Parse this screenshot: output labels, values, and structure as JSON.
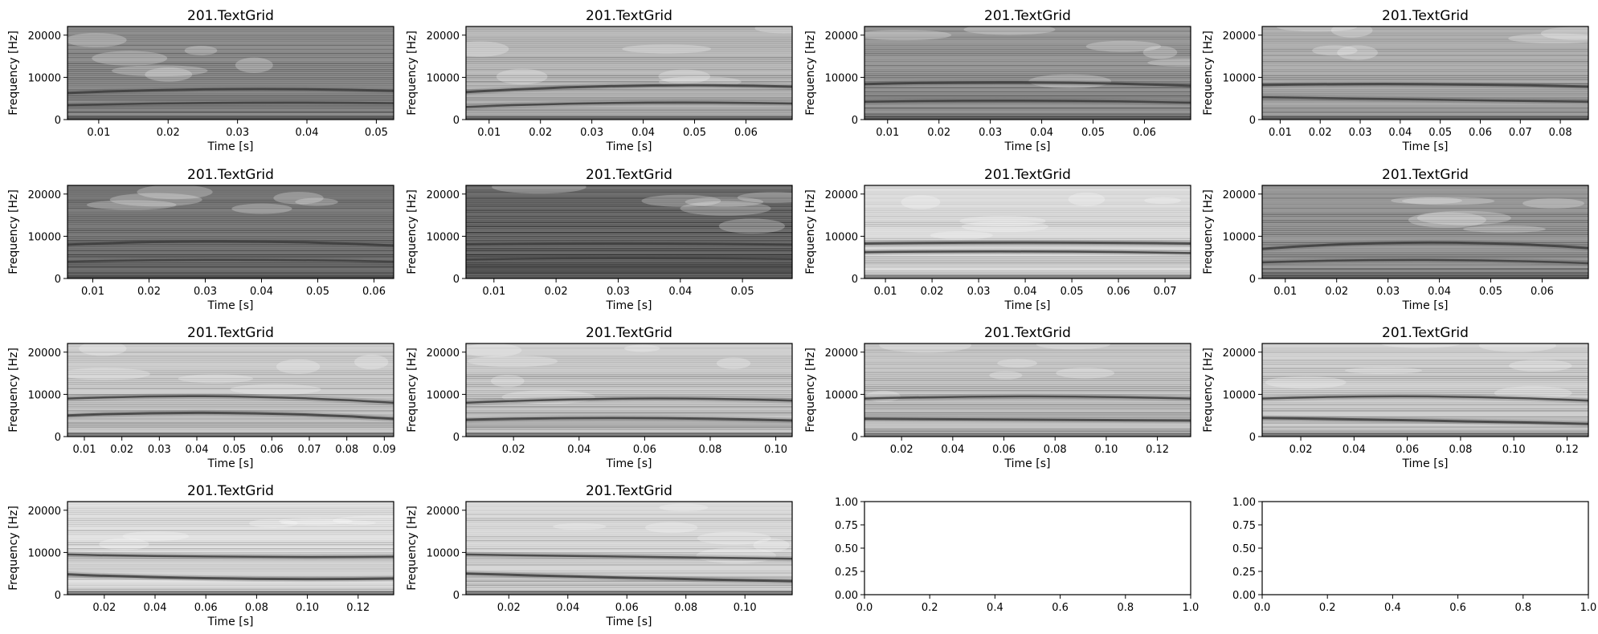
{
  "figure": {
    "grid": {
      "rows": 4,
      "cols": 4
    }
  },
  "chart_data": [
    {
      "type": "heatmap",
      "title": "201.TextGrid",
      "xlabel": "Time [s]",
      "ylabel": "Frequency [Hz]",
      "xlim": [
        0.0055,
        0.0525
      ],
      "ylim": [
        0,
        22050
      ],
      "xticks": [
        "0.01",
        "0.02",
        "0.03",
        "0.04",
        "0.05"
      ],
      "yticks": [
        "0",
        "10000",
        "20000"
      ],
      "formants": [
        [
          6300,
          7200,
          6800
        ],
        [
          3400,
          4000,
          3900
        ]
      ],
      "tone": 0.58
    },
    {
      "type": "heatmap",
      "title": "201.TextGrid",
      "xlabel": "Time [s]",
      "ylabel": "Frequency [Hz]",
      "xlim": [
        0.0055,
        0.069
      ],
      "ylim": [
        0,
        22050
      ],
      "xticks": [
        "0.01",
        "0.02",
        "0.03",
        "0.04",
        "0.05",
        "0.06"
      ],
      "yticks": [
        "0",
        "10000",
        "20000"
      ],
      "formants": [
        [
          6500,
          8000,
          7800
        ],
        [
          3000,
          4000,
          3800
        ]
      ],
      "tone": 0.75
    },
    {
      "type": "heatmap",
      "title": "201.TextGrid",
      "xlabel": "Time [s]",
      "ylabel": "Frequency [Hz]",
      "xlim": [
        0.0055,
        0.069
      ],
      "ylim": [
        0,
        22050
      ],
      "xticks": [
        "0.01",
        "0.02",
        "0.03",
        "0.04",
        "0.05",
        "0.06"
      ],
      "yticks": [
        "0",
        "10000",
        "20000"
      ],
      "formants": [
        [
          8400,
          8800,
          8000
        ],
        [
          4200,
          4500,
          4000
        ]
      ],
      "tone": 0.62
    },
    {
      "type": "heatmap",
      "title": "201.TextGrid",
      "xlabel": "Time [s]",
      "ylabel": "Frequency [Hz]",
      "xlim": [
        0.0055,
        0.087
      ],
      "ylim": [
        0,
        22050
      ],
      "xticks": [
        "0.01",
        "0.02",
        "0.03",
        "0.04",
        "0.05",
        "0.06",
        "0.07",
        "0.08"
      ],
      "yticks": [
        "0",
        "10000",
        "20000"
      ],
      "formants": [
        [
          8200,
          8400,
          7800
        ],
        [
          5300,
          4800,
          4200
        ]
      ],
      "tone": 0.7
    },
    {
      "type": "heatmap",
      "title": "201.TextGrid",
      "xlabel": "Time [s]",
      "ylabel": "Frequency [Hz]",
      "xlim": [
        0.0055,
        0.0635
      ],
      "ylim": [
        0,
        22050
      ],
      "xticks": [
        "0.01",
        "0.02",
        "0.03",
        "0.04",
        "0.05",
        "0.06"
      ],
      "yticks": [
        "0",
        "10000",
        "20000"
      ],
      "formants": [
        [
          8000,
          8800,
          7800
        ],
        [
          4000,
          4400,
          4000
        ]
      ],
      "tone": 0.5
    },
    {
      "type": "heatmap",
      "title": "201.TextGrid",
      "xlabel": "Time [s]",
      "ylabel": "Frequency [Hz]",
      "xlim": [
        0.0055,
        0.058
      ],
      "ylim": [
        0,
        22050
      ],
      "xticks": [
        "0.01",
        "0.02",
        "0.03",
        "0.04",
        "0.05"
      ],
      "yticks": [
        "0",
        "10000",
        "20000"
      ],
      "formants": [
        [
          8100,
          8300,
          8000
        ],
        [
          4500,
          4800,
          4600
        ]
      ],
      "tone": 0.45
    },
    {
      "type": "heatmap",
      "title": "201.TextGrid",
      "xlabel": "Time [s]",
      "ylabel": "Frequency [Hz]",
      "xlim": [
        0.0055,
        0.0755
      ],
      "ylim": [
        0,
        22050
      ],
      "xticks": [
        "0.01",
        "0.02",
        "0.03",
        "0.04",
        "0.05",
        "0.06",
        "0.07"
      ],
      "yticks": [
        "0",
        "10000",
        "20000"
      ],
      "formants": [
        [
          8300,
          8500,
          8300
        ],
        [
          6200,
          6400,
          6000
        ]
      ],
      "tone": 0.88
    },
    {
      "type": "heatmap",
      "title": "201.TextGrid",
      "xlabel": "Time [s]",
      "ylabel": "Frequency [Hz]",
      "xlim": [
        0.0055,
        0.069
      ],
      "ylim": [
        0,
        22050
      ],
      "xticks": [
        "0.01",
        "0.02",
        "0.03",
        "0.04",
        "0.05",
        "0.06"
      ],
      "yticks": [
        "0",
        "10000",
        "20000"
      ],
      "formants": [
        [
          7000,
          8500,
          7200
        ],
        [
          3800,
          4400,
          3600
        ]
      ],
      "tone": 0.62
    },
    {
      "type": "heatmap",
      "title": "201.TextGrid",
      "xlabel": "Time [s]",
      "ylabel": "Frequency [Hz]",
      "xlim": [
        0.0055,
        0.0925
      ],
      "ylim": [
        0,
        22050
      ],
      "xticks": [
        "0.01",
        "0.02",
        "0.03",
        "0.04",
        "0.05",
        "0.06",
        "0.07",
        "0.08",
        "0.09"
      ],
      "yticks": [
        "0",
        "10000",
        "20000"
      ],
      "formants": [
        [
          5000,
          5600,
          4200
        ],
        [
          9000,
          9500,
          8000
        ]
      ],
      "tone": 0.82
    },
    {
      "type": "heatmap",
      "title": "201.TextGrid",
      "xlabel": "Time [s]",
      "ylabel": "Frequency [Hz]",
      "xlim": [
        0.0055,
        0.105
      ],
      "ylim": [
        0,
        22050
      ],
      "xticks": [
        "0.02",
        "0.04",
        "0.06",
        "0.08",
        "0.10"
      ],
      "yticks": [
        "0",
        "10000",
        "20000"
      ],
      "formants": [
        [
          4000,
          4400,
          3800
        ],
        [
          8000,
          9000,
          8500
        ]
      ],
      "tone": 0.82
    },
    {
      "type": "heatmap",
      "title": "201.TextGrid",
      "xlabel": "Time [s]",
      "ylabel": "Frequency [Hz]",
      "xlim": [
        0.0055,
        0.133
      ],
      "ylim": [
        0,
        22050
      ],
      "xticks": [
        "0.02",
        "0.04",
        "0.06",
        "0.08",
        "0.10",
        "0.12"
      ],
      "yticks": [
        "0",
        "10000",
        "20000"
      ],
      "formants": [
        [
          4200,
          4000,
          3800
        ],
        [
          9000,
          9500,
          9000
        ]
      ],
      "tone": 0.8
    },
    {
      "type": "heatmap",
      "title": "201.TextGrid",
      "xlabel": "Time [s]",
      "ylabel": "Frequency [Hz]",
      "xlim": [
        0.0055,
        0.128
      ],
      "ylim": [
        0,
        22050
      ],
      "xticks": [
        "0.02",
        "0.04",
        "0.06",
        "0.08",
        "0.10",
        "0.12"
      ],
      "yticks": [
        "0",
        "10000",
        "20000"
      ],
      "formants": [
        [
          4400,
          3800,
          3000
        ],
        [
          9000,
          9500,
          8500
        ]
      ],
      "tone": 0.84
    },
    {
      "type": "heatmap",
      "title": "201.TextGrid",
      "xlabel": "Time [s]",
      "ylabel": "Frequency [Hz]",
      "xlim": [
        0.0055,
        0.134
      ],
      "ylim": [
        0,
        22050
      ],
      "xticks": [
        "0.02",
        "0.04",
        "0.06",
        "0.08",
        "0.10",
        "0.12"
      ],
      "yticks": [
        "0",
        "10000",
        "20000"
      ],
      "formants": [
        [
          4800,
          3800,
          3800
        ],
        [
          9500,
          9000,
          9000
        ]
      ],
      "tone": 0.9
    },
    {
      "type": "heatmap",
      "title": "201.TextGrid",
      "xlabel": "Time [s]",
      "ylabel": "Frequency [Hz]",
      "xlim": [
        0.0055,
        0.116
      ],
      "ylim": [
        0,
        22050
      ],
      "xticks": [
        "0.02",
        "0.04",
        "0.06",
        "0.08",
        "0.10"
      ],
      "yticks": [
        "0",
        "10000",
        "20000"
      ],
      "formants": [
        [
          5000,
          4000,
          3200
        ],
        [
          9500,
          9000,
          8500
        ]
      ],
      "tone": 0.87
    },
    {
      "type": "empty",
      "xlim": [
        0,
        1
      ],
      "ylim": [
        0,
        1
      ],
      "xticks": [
        "0.0",
        "0.2",
        "0.4",
        "0.6",
        "0.8",
        "1.0"
      ],
      "yticks": [
        "0.00",
        "0.25",
        "0.50",
        "0.75",
        "1.00"
      ]
    },
    {
      "type": "empty",
      "xlim": [
        0,
        1
      ],
      "ylim": [
        0,
        1
      ],
      "xticks": [
        "0.0",
        "0.2",
        "0.4",
        "0.6",
        "0.8",
        "1.0"
      ],
      "yticks": [
        "0.00",
        "0.25",
        "0.50",
        "0.75",
        "1.00"
      ]
    }
  ]
}
